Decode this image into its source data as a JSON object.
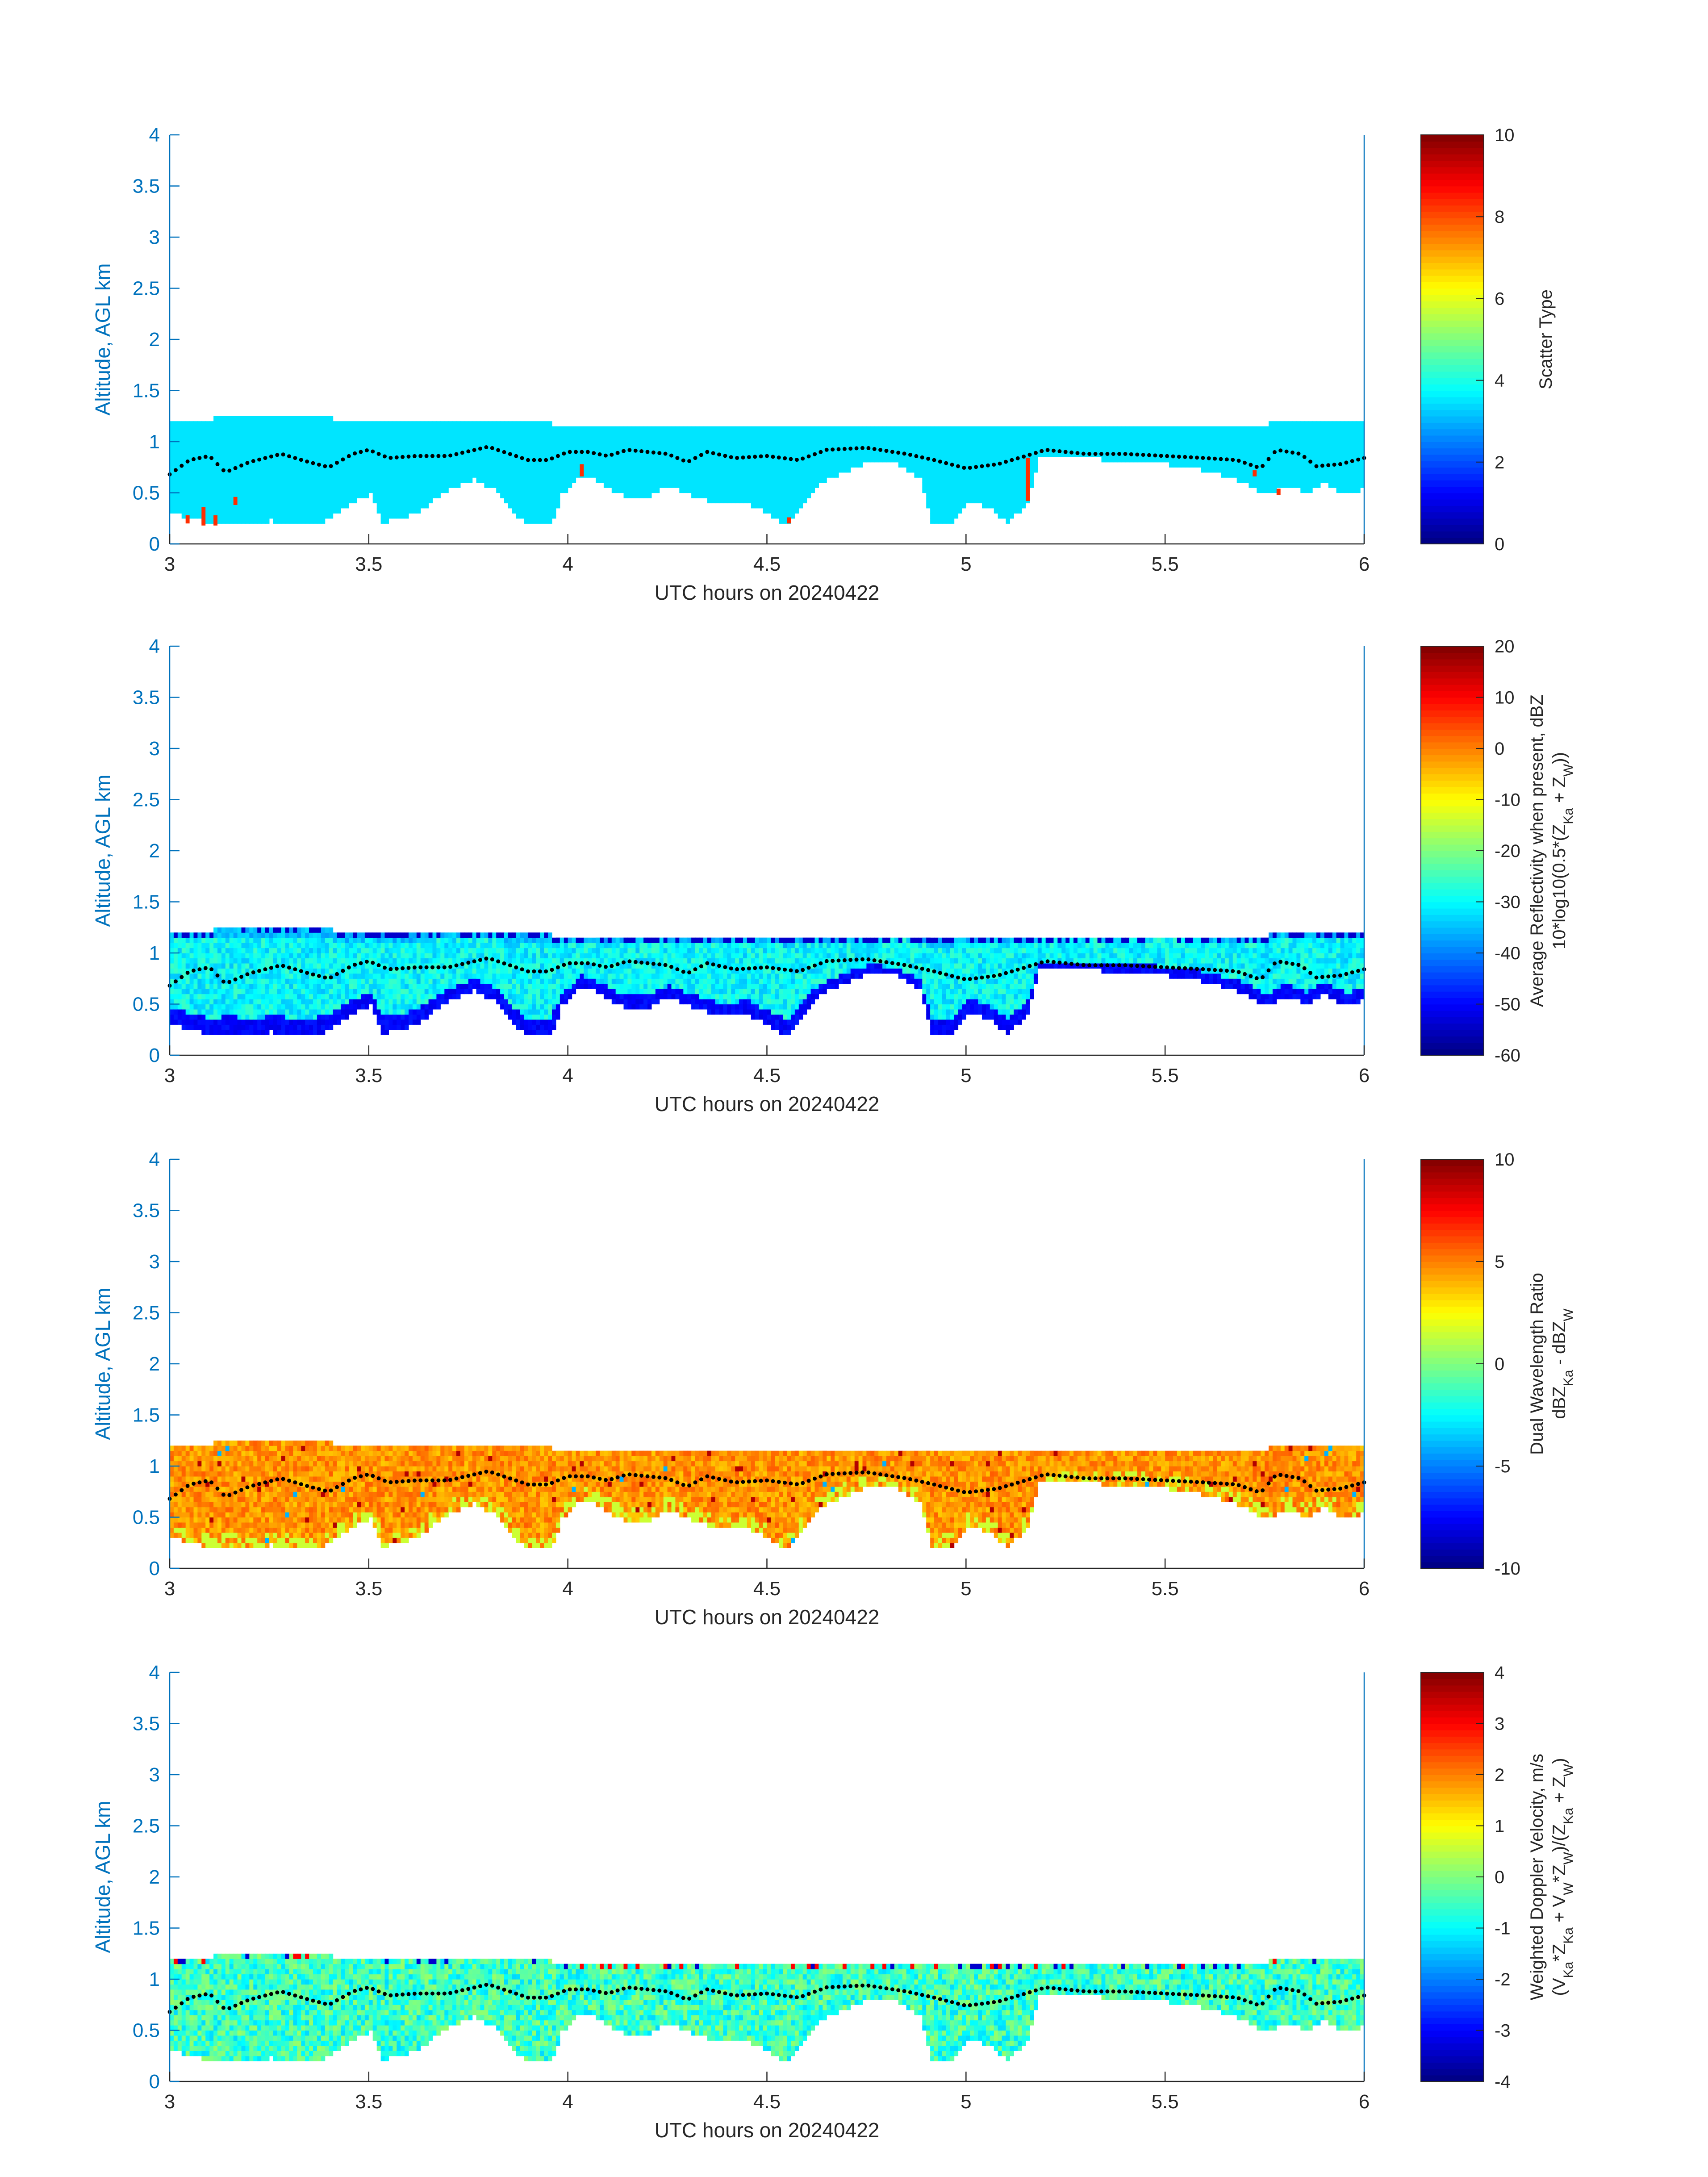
{
  "figure": {
    "xlabel": "UTC hours on 20240422",
    "ylabel": "Altitude, AGL km",
    "axis_color": "#0072BD",
    "text_color": "#262626",
    "cloud_top_marker_color": "#000000"
  },
  "chart_data": [
    {
      "type": "heatmap",
      "panel": "scatter-type",
      "xlabel": "UTC hours on 20240422",
      "ylabel": "Altitude, AGL km",
      "xlim": [
        3,
        6
      ],
      "ylim": [
        0,
        4
      ],
      "xticks": [
        3,
        3.5,
        4,
        4.5,
        5,
        5.5,
        6
      ],
      "yticks": [
        0,
        0.5,
        1,
        1.5,
        2,
        2.5,
        3,
        3.5,
        4
      ],
      "grid": false,
      "colorbar": {
        "label_lines": [
          "Scatter Type"
        ],
        "clim": [
          0,
          10
        ],
        "ticks": [
          0,
          2,
          4,
          6,
          8,
          10
        ],
        "colormap": "jet"
      },
      "dominant_value": 3.5,
      "cloud_top_km": 1.15,
      "anomalies": [
        {
          "t": 3.04,
          "base": 0.2,
          "top": 0.28,
          "value": 8.3
        },
        {
          "t": 3.08,
          "base": 0.18,
          "top": 0.36,
          "value": 8.3
        },
        {
          "t": 3.11,
          "base": 0.18,
          "top": 0.28,
          "value": 8.3
        },
        {
          "t": 3.16,
          "base": 0.38,
          "top": 0.46,
          "value": 8.3
        },
        {
          "t": 4.03,
          "base": 0.66,
          "top": 0.78,
          "value": 8.3
        },
        {
          "t": 4.55,
          "base": 0.2,
          "top": 0.26,
          "value": 8.3
        },
        {
          "t": 5.15,
          "base": 0.42,
          "top": 0.84,
          "value": 8.3
        },
        {
          "t": 5.72,
          "base": 0.66,
          "top": 0.72,
          "value": 8.3
        },
        {
          "t": 5.78,
          "base": 0.48,
          "top": 0.54,
          "value": 8.3
        }
      ]
    },
    {
      "type": "heatmap",
      "panel": "reflectivity",
      "xlabel": "UTC hours on 20240422",
      "ylabel": "Altitude, AGL km",
      "xlim": [
        3,
        6
      ],
      "ylim": [
        0,
        4
      ],
      "xticks": [
        3,
        3.5,
        4,
        4.5,
        5,
        5.5,
        6
      ],
      "yticks": [
        0,
        0.5,
        1,
        1.5,
        2,
        2.5,
        3,
        3.5,
        4
      ],
      "grid": false,
      "colorbar": {
        "label_lines": [
          "Average Reflectivity when present, dBZ",
          "10*log10(0.5*(Z_Ka + Z_W))"
        ],
        "clim": [
          -60,
          20
        ],
        "ticks": [
          -60,
          -50,
          -40,
          -30,
          -20,
          -10,
          0,
          10,
          20
        ],
        "colormap": "jet"
      },
      "value_range_shown": [
        -55,
        -22
      ],
      "description_values": {
        "base_value": -52,
        "interior_value": -30,
        "near_top_value": -38
      }
    },
    {
      "type": "heatmap",
      "panel": "dual-wavelength-ratio",
      "xlabel": "UTC hours on 20240422",
      "ylabel": "Altitude, AGL km",
      "xlim": [
        3,
        6
      ],
      "ylim": [
        0,
        4
      ],
      "xticks": [
        3,
        3.5,
        4,
        4.5,
        5,
        5.5,
        6
      ],
      "yticks": [
        0,
        0.5,
        1,
        1.5,
        2,
        2.5,
        3,
        3.5,
        4
      ],
      "grid": false,
      "colorbar": {
        "label_lines": [
          "Dual Wavelength Ratio",
          "dBZ_Ka - dBZ_W"
        ],
        "clim": [
          -10,
          10
        ],
        "ticks": [
          -10,
          -5,
          0,
          5,
          10
        ],
        "colormap": "jet"
      },
      "value_range_shown": [
        0,
        9
      ],
      "description_values": {
        "typical_value": 4.5
      }
    },
    {
      "type": "heatmap",
      "panel": "doppler-velocity",
      "xlabel": "UTC hours on 20240422",
      "ylabel": "Altitude, AGL km",
      "xlim": [
        3,
        6
      ],
      "ylim": [
        0,
        4
      ],
      "xticks": [
        3,
        3.5,
        4,
        4.5,
        5,
        5.5,
        6
      ],
      "yticks": [
        0,
        0.5,
        1,
        1.5,
        2,
        2.5,
        3,
        3.5,
        4
      ],
      "grid": false,
      "colorbar": {
        "label_lines": [
          "Weighted Doppler Velocity, m/s",
          "(V_Ka*Z_Ka + V_W*Z_W)/(Z_Ka + Z_W)"
        ],
        "clim": [
          -4,
          4
        ],
        "ticks": [
          -4,
          -3,
          -2,
          -1,
          0,
          1,
          2,
          3,
          4
        ],
        "colormap": "jet"
      },
      "value_range_shown": [
        -3.5,
        3.5
      ],
      "description_values": {
        "typical_value": -0.6
      }
    }
  ],
  "cloud_field": {
    "t_start": 3.0,
    "t_end": 6.0,
    "dt_hours": 0.01,
    "top_km_segments": [
      {
        "from": 3.0,
        "to": 3.1,
        "top": 1.2
      },
      {
        "from": 3.1,
        "to": 3.25,
        "top": 1.22
      },
      {
        "from": 3.25,
        "to": 3.4,
        "top": 1.22
      },
      {
        "from": 3.4,
        "to": 3.95,
        "top": 1.17
      },
      {
        "from": 3.95,
        "to": 5.75,
        "top": 1.14
      },
      {
        "from": 5.75,
        "to": 6.0,
        "top": 1.17
      }
    ],
    "base_km_profile": [
      {
        "t": 3.0,
        "base": 0.32
      },
      {
        "t": 3.05,
        "base": 0.28
      },
      {
        "t": 3.1,
        "base": 0.22
      },
      {
        "t": 3.15,
        "base": 0.24
      },
      {
        "t": 3.2,
        "base": 0.2
      },
      {
        "t": 3.25,
        "base": 0.25
      },
      {
        "t": 3.3,
        "base": 0.22
      },
      {
        "t": 3.35,
        "base": 0.2
      },
      {
        "t": 3.4,
        "base": 0.28
      },
      {
        "t": 3.45,
        "base": 0.42
      },
      {
        "t": 3.5,
        "base": 0.5
      },
      {
        "t": 3.53,
        "base": 0.24
      },
      {
        "t": 3.57,
        "base": 0.26
      },
      {
        "t": 3.62,
        "base": 0.34
      },
      {
        "t": 3.7,
        "base": 0.56
      },
      {
        "t": 3.76,
        "base": 0.66
      },
      {
        "t": 3.82,
        "base": 0.54
      },
      {
        "t": 3.87,
        "base": 0.3
      },
      {
        "t": 3.9,
        "base": 0.2
      },
      {
        "t": 3.95,
        "base": 0.2
      },
      {
        "t": 3.98,
        "base": 0.5
      },
      {
        "t": 4.03,
        "base": 0.7
      },
      {
        "t": 4.08,
        "base": 0.62
      },
      {
        "t": 4.13,
        "base": 0.5
      },
      {
        "t": 4.2,
        "base": 0.48
      },
      {
        "t": 4.25,
        "base": 0.6
      },
      {
        "t": 4.3,
        "base": 0.5
      },
      {
        "t": 4.38,
        "base": 0.4
      },
      {
        "t": 4.45,
        "base": 0.42
      },
      {
        "t": 4.52,
        "base": 0.26
      },
      {
        "t": 4.55,
        "base": 0.22
      },
      {
        "t": 4.58,
        "base": 0.38
      },
      {
        "t": 4.62,
        "base": 0.58
      },
      {
        "t": 4.68,
        "base": 0.72
      },
      {
        "t": 4.75,
        "base": 0.82
      },
      {
        "t": 4.82,
        "base": 0.8
      },
      {
        "t": 4.88,
        "base": 0.66
      },
      {
        "t": 4.91,
        "base": 0.22
      },
      {
        "t": 4.96,
        "base": 0.22
      },
      {
        "t": 5.0,
        "base": 0.44
      },
      {
        "t": 5.05,
        "base": 0.38
      },
      {
        "t": 5.1,
        "base": 0.24
      },
      {
        "t": 5.15,
        "base": 0.42
      },
      {
        "t": 5.18,
        "base": 0.86
      },
      {
        "t": 5.3,
        "base": 0.86
      },
      {
        "t": 5.45,
        "base": 0.82
      },
      {
        "t": 5.55,
        "base": 0.78
      },
      {
        "t": 5.62,
        "base": 0.72
      },
      {
        "t": 5.7,
        "base": 0.62
      },
      {
        "t": 5.75,
        "base": 0.5
      },
      {
        "t": 5.8,
        "base": 0.6
      },
      {
        "t": 5.85,
        "base": 0.52
      },
      {
        "t": 5.9,
        "base": 0.62
      },
      {
        "t": 5.95,
        "base": 0.5
      },
      {
        "t": 6.0,
        "base": 0.58
      }
    ],
    "cloud_base_markers_km": [
      {
        "t": 3.0,
        "h": 0.68
      },
      {
        "t": 3.05,
        "h": 0.82
      },
      {
        "t": 3.1,
        "h": 0.86
      },
      {
        "t": 3.14,
        "h": 0.7
      },
      {
        "t": 3.2,
        "h": 0.8
      },
      {
        "t": 3.28,
        "h": 0.88
      },
      {
        "t": 3.35,
        "h": 0.8
      },
      {
        "t": 3.4,
        "h": 0.75
      },
      {
        "t": 3.46,
        "h": 0.88
      },
      {
        "t": 3.5,
        "h": 0.92
      },
      {
        "t": 3.55,
        "h": 0.84
      },
      {
        "t": 3.62,
        "h": 0.86
      },
      {
        "t": 3.7,
        "h": 0.86
      },
      {
        "t": 3.8,
        "h": 0.95
      },
      {
        "t": 3.9,
        "h": 0.82
      },
      {
        "t": 3.95,
        "h": 0.82
      },
      {
        "t": 4.0,
        "h": 0.9
      },
      {
        "t": 4.05,
        "h": 0.9
      },
      {
        "t": 4.1,
        "h": 0.86
      },
      {
        "t": 4.15,
        "h": 0.92
      },
      {
        "t": 4.25,
        "h": 0.88
      },
      {
        "t": 4.3,
        "h": 0.8
      },
      {
        "t": 4.35,
        "h": 0.9
      },
      {
        "t": 4.42,
        "h": 0.84
      },
      {
        "t": 4.5,
        "h": 0.86
      },
      {
        "t": 4.58,
        "h": 0.82
      },
      {
        "t": 4.65,
        "h": 0.92
      },
      {
        "t": 4.75,
        "h": 0.94
      },
      {
        "t": 4.85,
        "h": 0.88
      },
      {
        "t": 4.92,
        "h": 0.82
      },
      {
        "t": 5.0,
        "h": 0.74
      },
      {
        "t": 5.08,
        "h": 0.78
      },
      {
        "t": 5.15,
        "h": 0.86
      },
      {
        "t": 5.2,
        "h": 0.92
      },
      {
        "t": 5.3,
        "h": 0.88
      },
      {
        "t": 5.4,
        "h": 0.88
      },
      {
        "t": 5.5,
        "h": 0.86
      },
      {
        "t": 5.6,
        "h": 0.84
      },
      {
        "t": 5.68,
        "h": 0.82
      },
      {
        "t": 5.74,
        "h": 0.74
      },
      {
        "t": 5.78,
        "h": 0.92
      },
      {
        "t": 5.84,
        "h": 0.88
      },
      {
        "t": 5.88,
        "h": 0.76
      },
      {
        "t": 5.94,
        "h": 0.78
      },
      {
        "t": 6.0,
        "h": 0.84
      }
    ]
  }
}
